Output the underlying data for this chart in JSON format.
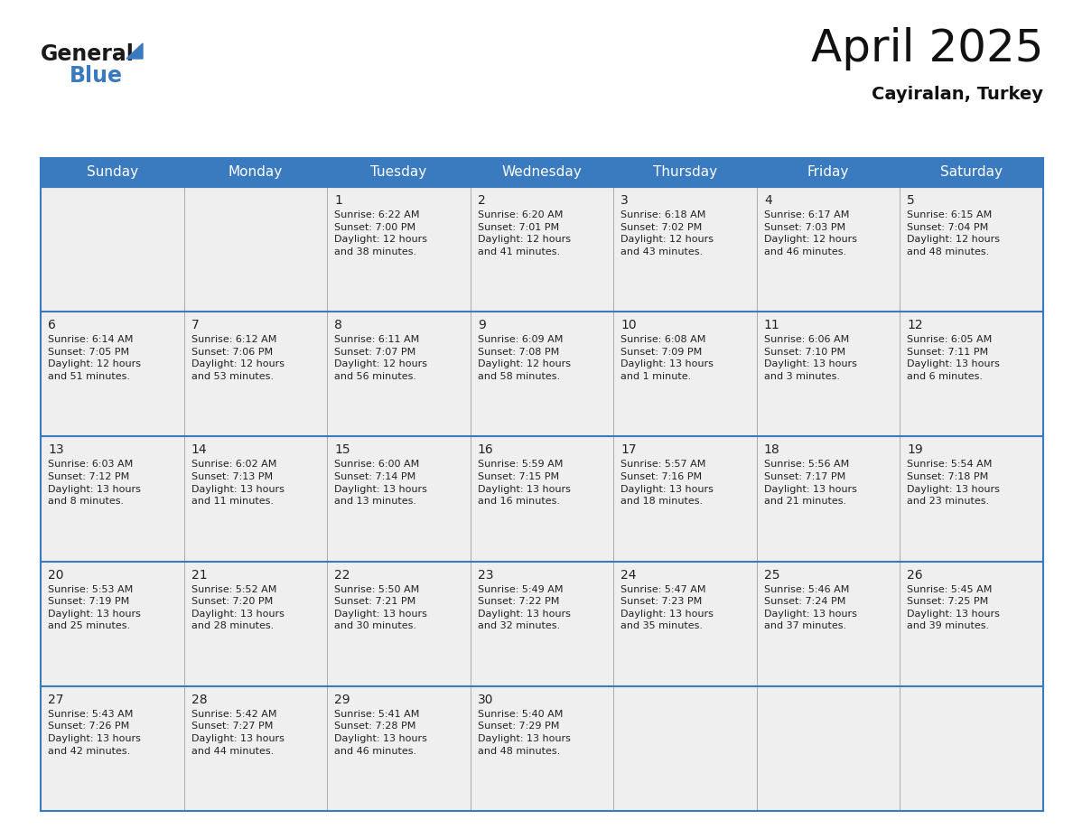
{
  "title": "April 2025",
  "subtitle": "Cayiralan, Turkey",
  "header_bg_color": "#3a7abf",
  "header_text_color": "#ffffff",
  "cell_bg_color": "#efefef",
  "border_color": "#3a7abf",
  "row_line_color": "#3a7abf",
  "vert_line_color": "#aaaaaa",
  "text_color": "#222222",
  "days_of_week": [
    "Sunday",
    "Monday",
    "Tuesday",
    "Wednesday",
    "Thursday",
    "Friday",
    "Saturday"
  ],
  "weeks": [
    [
      {
        "day": null,
        "info": null
      },
      {
        "day": null,
        "info": null
      },
      {
        "day": "1",
        "info": "Sunrise: 6:22 AM\nSunset: 7:00 PM\nDaylight: 12 hours\nand 38 minutes."
      },
      {
        "day": "2",
        "info": "Sunrise: 6:20 AM\nSunset: 7:01 PM\nDaylight: 12 hours\nand 41 minutes."
      },
      {
        "day": "3",
        "info": "Sunrise: 6:18 AM\nSunset: 7:02 PM\nDaylight: 12 hours\nand 43 minutes."
      },
      {
        "day": "4",
        "info": "Sunrise: 6:17 AM\nSunset: 7:03 PM\nDaylight: 12 hours\nand 46 minutes."
      },
      {
        "day": "5",
        "info": "Sunrise: 6:15 AM\nSunset: 7:04 PM\nDaylight: 12 hours\nand 48 minutes."
      }
    ],
    [
      {
        "day": "6",
        "info": "Sunrise: 6:14 AM\nSunset: 7:05 PM\nDaylight: 12 hours\nand 51 minutes."
      },
      {
        "day": "7",
        "info": "Sunrise: 6:12 AM\nSunset: 7:06 PM\nDaylight: 12 hours\nand 53 minutes."
      },
      {
        "day": "8",
        "info": "Sunrise: 6:11 AM\nSunset: 7:07 PM\nDaylight: 12 hours\nand 56 minutes."
      },
      {
        "day": "9",
        "info": "Sunrise: 6:09 AM\nSunset: 7:08 PM\nDaylight: 12 hours\nand 58 minutes."
      },
      {
        "day": "10",
        "info": "Sunrise: 6:08 AM\nSunset: 7:09 PM\nDaylight: 13 hours\nand 1 minute."
      },
      {
        "day": "11",
        "info": "Sunrise: 6:06 AM\nSunset: 7:10 PM\nDaylight: 13 hours\nand 3 minutes."
      },
      {
        "day": "12",
        "info": "Sunrise: 6:05 AM\nSunset: 7:11 PM\nDaylight: 13 hours\nand 6 minutes."
      }
    ],
    [
      {
        "day": "13",
        "info": "Sunrise: 6:03 AM\nSunset: 7:12 PM\nDaylight: 13 hours\nand 8 minutes."
      },
      {
        "day": "14",
        "info": "Sunrise: 6:02 AM\nSunset: 7:13 PM\nDaylight: 13 hours\nand 11 minutes."
      },
      {
        "day": "15",
        "info": "Sunrise: 6:00 AM\nSunset: 7:14 PM\nDaylight: 13 hours\nand 13 minutes."
      },
      {
        "day": "16",
        "info": "Sunrise: 5:59 AM\nSunset: 7:15 PM\nDaylight: 13 hours\nand 16 minutes."
      },
      {
        "day": "17",
        "info": "Sunrise: 5:57 AM\nSunset: 7:16 PM\nDaylight: 13 hours\nand 18 minutes."
      },
      {
        "day": "18",
        "info": "Sunrise: 5:56 AM\nSunset: 7:17 PM\nDaylight: 13 hours\nand 21 minutes."
      },
      {
        "day": "19",
        "info": "Sunrise: 5:54 AM\nSunset: 7:18 PM\nDaylight: 13 hours\nand 23 minutes."
      }
    ],
    [
      {
        "day": "20",
        "info": "Sunrise: 5:53 AM\nSunset: 7:19 PM\nDaylight: 13 hours\nand 25 minutes."
      },
      {
        "day": "21",
        "info": "Sunrise: 5:52 AM\nSunset: 7:20 PM\nDaylight: 13 hours\nand 28 minutes."
      },
      {
        "day": "22",
        "info": "Sunrise: 5:50 AM\nSunset: 7:21 PM\nDaylight: 13 hours\nand 30 minutes."
      },
      {
        "day": "23",
        "info": "Sunrise: 5:49 AM\nSunset: 7:22 PM\nDaylight: 13 hours\nand 32 minutes."
      },
      {
        "day": "24",
        "info": "Sunrise: 5:47 AM\nSunset: 7:23 PM\nDaylight: 13 hours\nand 35 minutes."
      },
      {
        "day": "25",
        "info": "Sunrise: 5:46 AM\nSunset: 7:24 PM\nDaylight: 13 hours\nand 37 minutes."
      },
      {
        "day": "26",
        "info": "Sunrise: 5:45 AM\nSunset: 7:25 PM\nDaylight: 13 hours\nand 39 minutes."
      }
    ],
    [
      {
        "day": "27",
        "info": "Sunrise: 5:43 AM\nSunset: 7:26 PM\nDaylight: 13 hours\nand 42 minutes."
      },
      {
        "day": "28",
        "info": "Sunrise: 5:42 AM\nSunset: 7:27 PM\nDaylight: 13 hours\nand 44 minutes."
      },
      {
        "day": "29",
        "info": "Sunrise: 5:41 AM\nSunset: 7:28 PM\nDaylight: 13 hours\nand 46 minutes."
      },
      {
        "day": "30",
        "info": "Sunrise: 5:40 AM\nSunset: 7:29 PM\nDaylight: 13 hours\nand 48 minutes."
      },
      {
        "day": null,
        "info": null
      },
      {
        "day": null,
        "info": null
      },
      {
        "day": null,
        "info": null
      }
    ]
  ],
  "logo_general_color": "#1a1a1a",
  "logo_blue_color": "#3a7abf",
  "title_fontsize": 36,
  "subtitle_fontsize": 14,
  "header_fontsize": 11,
  "day_num_fontsize": 10,
  "info_fontsize": 8
}
